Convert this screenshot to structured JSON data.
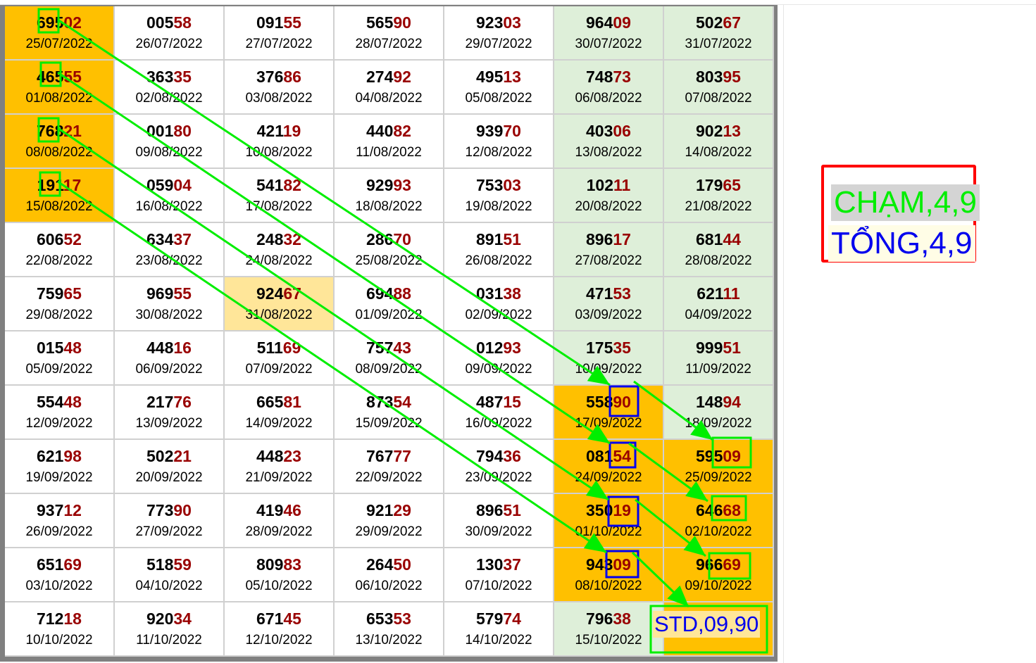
{
  "colors": {
    "orange": "#ffc000",
    "weekend": "#deefd9",
    "highlight": "#ffe699",
    "tail": "#990000",
    "arrow": "#00ee00",
    "box_blue": "#0000ee",
    "legend_border": "#ff0000"
  },
  "rows": [
    [
      {
        "n": "69502",
        "d": "25/07/2022",
        "bg": "or"
      },
      {
        "n": "00558",
        "d": "26/07/2022"
      },
      {
        "n": "09155",
        "d": "27/07/2022"
      },
      {
        "n": "56590",
        "d": "28/07/2022"
      },
      {
        "n": "92303",
        "d": "29/07/2022"
      },
      {
        "n": "96409",
        "d": "30/07/2022",
        "bg": "wk"
      },
      {
        "n": "50267",
        "d": "31/07/2022",
        "bg": "wk"
      }
    ],
    [
      {
        "n": "46555",
        "d": "01/08/2022",
        "bg": "or"
      },
      {
        "n": "36335",
        "d": "02/08/2022"
      },
      {
        "n": "37686",
        "d": "03/08/2022"
      },
      {
        "n": "27492",
        "d": "04/08/2022"
      },
      {
        "n": "49513",
        "d": "05/08/2022"
      },
      {
        "n": "74873",
        "d": "06/08/2022",
        "bg": "wk"
      },
      {
        "n": "80395",
        "d": "07/08/2022",
        "bg": "wk"
      }
    ],
    [
      {
        "n": "76821",
        "d": "08/08/2022",
        "bg": "or"
      },
      {
        "n": "00180",
        "d": "09/08/2022"
      },
      {
        "n": "42119",
        "d": "10/08/2022"
      },
      {
        "n": "44082",
        "d": "11/08/2022"
      },
      {
        "n": "93970",
        "d": "12/08/2022"
      },
      {
        "n": "40306",
        "d": "13/08/2022",
        "bg": "wk"
      },
      {
        "n": "90213",
        "d": "14/08/2022",
        "bg": "wk"
      }
    ],
    [
      {
        "n": "19117",
        "d": "15/08/2022",
        "bg": "or"
      },
      {
        "n": "05904",
        "d": "16/08/2022"
      },
      {
        "n": "54182",
        "d": "17/08/2022"
      },
      {
        "n": "92993",
        "d": "18/08/2022"
      },
      {
        "n": "75303",
        "d": "19/08/2022"
      },
      {
        "n": "10211",
        "d": "20/08/2022",
        "bg": "wk"
      },
      {
        "n": "17965",
        "d": "21/08/2022",
        "bg": "wk"
      }
    ],
    [
      {
        "n": "60652",
        "d": "22/08/2022"
      },
      {
        "n": "63437",
        "d": "23/08/2022"
      },
      {
        "n": "24832",
        "d": "24/08/2022"
      },
      {
        "n": "28670",
        "d": "25/08/2022"
      },
      {
        "n": "89151",
        "d": "26/08/2022"
      },
      {
        "n": "89617",
        "d": "27/08/2022",
        "bg": "wk"
      },
      {
        "n": "68144",
        "d": "28/08/2022",
        "bg": "wk"
      }
    ],
    [
      {
        "n": "75965",
        "d": "29/08/2022"
      },
      {
        "n": "96955",
        "d": "30/08/2022"
      },
      {
        "n": "92467",
        "d": "31/08/2022",
        "bg": "ly"
      },
      {
        "n": "69488",
        "d": "01/09/2022"
      },
      {
        "n": "03138",
        "d": "02/09/2022"
      },
      {
        "n": "47153",
        "d": "03/09/2022",
        "bg": "wk"
      },
      {
        "n": "62111",
        "d": "04/09/2022",
        "bg": "wk"
      }
    ],
    [
      {
        "n": "01548",
        "d": "05/09/2022"
      },
      {
        "n": "44816",
        "d": "06/09/2022"
      },
      {
        "n": "51169",
        "d": "07/09/2022"
      },
      {
        "n": "75743",
        "d": "08/09/2022"
      },
      {
        "n": "01293",
        "d": "09/09/2022"
      },
      {
        "n": "17535",
        "d": "10/09/2022",
        "bg": "wk"
      },
      {
        "n": "99951",
        "d": "11/09/2022",
        "bg": "wk"
      }
    ],
    [
      {
        "n": "55448",
        "d": "12/09/2022"
      },
      {
        "n": "21776",
        "d": "13/09/2022"
      },
      {
        "n": "66581",
        "d": "14/09/2022"
      },
      {
        "n": "87354",
        "d": "15/09/2022"
      },
      {
        "n": "48715",
        "d": "16/09/2022"
      },
      {
        "n": "55890",
        "d": "17/09/2022",
        "bg": "or"
      },
      {
        "n": "14894",
        "d": "18/09/2022",
        "bg": "wk"
      }
    ],
    [
      {
        "n": "62198",
        "d": "19/09/2022"
      },
      {
        "n": "50221",
        "d": "20/09/2022"
      },
      {
        "n": "44823",
        "d": "21/09/2022"
      },
      {
        "n": "76777",
        "d": "22/09/2022"
      },
      {
        "n": "79436",
        "d": "23/09/2022"
      },
      {
        "n": "08154",
        "d": "24/09/2022",
        "bg": "or"
      },
      {
        "n": "59509",
        "d": "25/09/2022",
        "bg": "or"
      }
    ],
    [
      {
        "n": "93712",
        "d": "26/09/2022"
      },
      {
        "n": "77390",
        "d": "27/09/2022"
      },
      {
        "n": "41946",
        "d": "28/09/2022"
      },
      {
        "n": "92129",
        "d": "29/09/2022"
      },
      {
        "n": "89651",
        "d": "30/09/2022"
      },
      {
        "n": "35019",
        "d": "01/10/2022",
        "bg": "or"
      },
      {
        "n": "64668",
        "d": "02/10/2022",
        "bg": "or"
      }
    ],
    [
      {
        "n": "65169",
        "d": "03/10/2022"
      },
      {
        "n": "51859",
        "d": "04/10/2022"
      },
      {
        "n": "80983",
        "d": "05/10/2022"
      },
      {
        "n": "26450",
        "d": "06/10/2022"
      },
      {
        "n": "13037",
        "d": "07/10/2022"
      },
      {
        "n": "94309",
        "d": "08/10/2022",
        "bg": "or"
      },
      {
        "n": "96669",
        "d": "09/10/2022",
        "bg": "or"
      }
    ],
    [
      {
        "n": "71218",
        "d": "10/10/2022"
      },
      {
        "n": "92034",
        "d": "11/10/2022"
      },
      {
        "n": "67145",
        "d": "12/10/2022"
      },
      {
        "n": "65353",
        "d": "13/10/2022"
      },
      {
        "n": "57974",
        "d": "14/10/2022"
      },
      {
        "n": "79638",
        "d": "15/10/2022",
        "bg": "wk"
      },
      {
        "n": "",
        "d": "",
        "bg": "or"
      }
    ]
  ],
  "result": {
    "label": "STD,09,90"
  },
  "legend": {
    "cham": "CHẠM,4,9",
    "tong": "TỔNG,4,9"
  }
}
